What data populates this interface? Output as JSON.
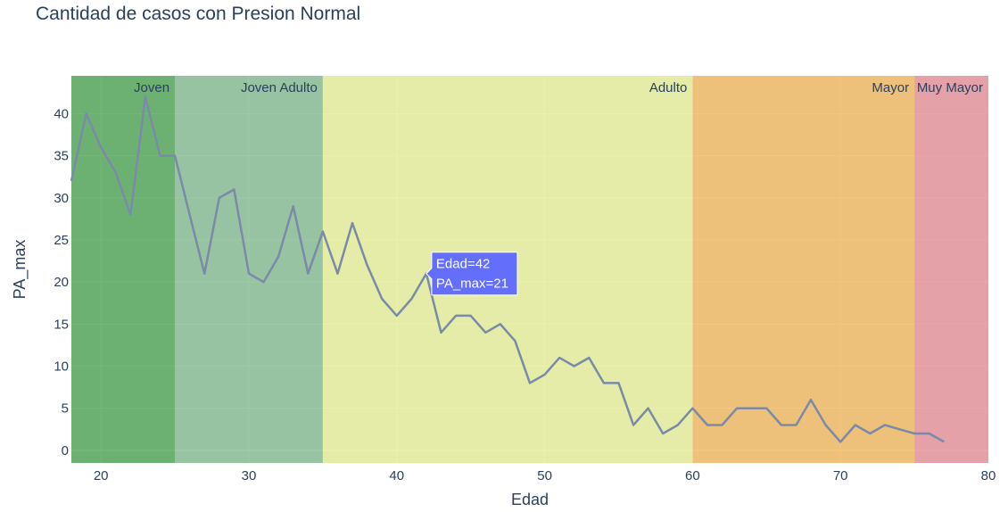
{
  "chart_data": {
    "type": "line",
    "title": "Cantidad de casos con Presion Normal",
    "xlabel": "Edad",
    "ylabel": "PA_max",
    "xlim": [
      18,
      80
    ],
    "ylim": [
      -1.5,
      44.5
    ],
    "x_ticks": [
      20,
      30,
      40,
      50,
      60,
      70,
      80
    ],
    "y_ticks": [
      0,
      5,
      10,
      15,
      20,
      25,
      30,
      35,
      40
    ],
    "grid": true,
    "series": [
      {
        "color": "#7a8aa8",
        "x": [
          18,
          19,
          20,
          21,
          22,
          23,
          24,
          25,
          26,
          27,
          28,
          29,
          30,
          31,
          32,
          33,
          34,
          35,
          36,
          37,
          38,
          39,
          40,
          41,
          42,
          43,
          44,
          45,
          46,
          47,
          48,
          49,
          50,
          51,
          52,
          53,
          54,
          55,
          56,
          57,
          58,
          59,
          60,
          61,
          62,
          63,
          64,
          65,
          66,
          67,
          68,
          69,
          70,
          71,
          72,
          73,
          74,
          75,
          76,
          77
        ],
        "y": [
          32,
          40,
          36,
          33,
          28,
          42,
          35,
          35,
          28,
          21,
          30,
          31,
          21,
          20,
          23,
          29,
          21,
          26,
          21,
          27,
          22,
          18,
          16,
          18,
          21,
          14,
          16,
          16,
          14,
          15,
          13,
          8,
          9,
          11,
          10,
          11,
          8,
          8,
          3,
          5,
          2,
          3,
          5,
          3,
          3,
          5,
          5,
          5,
          3,
          3,
          6,
          3,
          1,
          3,
          2,
          3,
          2.5,
          2,
          2,
          1
        ]
      }
    ],
    "bands": [
      {
        "label": "Joven",
        "x0": 18,
        "x1": 25,
        "color": "#3f9a3f",
        "opacity": 0.72
      },
      {
        "label": "Joven Adulto",
        "x0": 25,
        "x1": 35,
        "color": "#72b07c",
        "opacity": 0.68
      },
      {
        "label": "Adulto",
        "x0": 35,
        "x1": 60,
        "color": "#e4ec8c",
        "opacity": 0.75
      },
      {
        "label": "Mayor",
        "x0": 60,
        "x1": 75,
        "color": "#f0b04a",
        "opacity": 0.72
      },
      {
        "label": "Muy Mayor",
        "x0": 75,
        "x1": 80,
        "color": "#e68c92",
        "opacity": 0.78
      }
    ],
    "hover": {
      "x": 42,
      "y": 21,
      "line1": "Edad=42",
      "line2": "PA_max=21",
      "color": "#636efa"
    }
  }
}
